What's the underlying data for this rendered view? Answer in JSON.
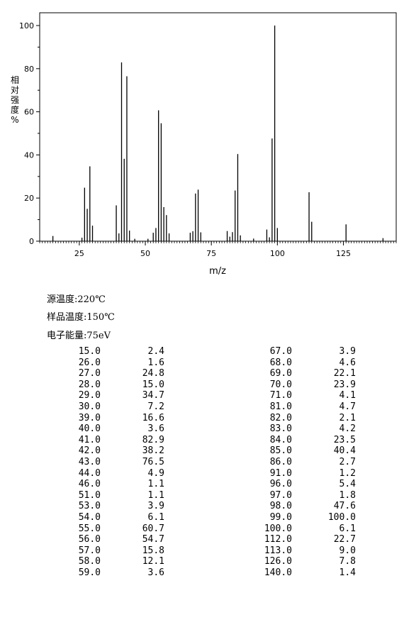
{
  "chart_data": {
    "type": "bar",
    "xlabel": "m/z",
    "ylabel": "相对强度%",
    "xlim": [
      10,
      145
    ],
    "ylim": [
      0,
      105
    ],
    "xticks": [
      25,
      50,
      75,
      100,
      125
    ],
    "yticks": [
      0,
      20,
      40,
      60,
      80,
      100
    ],
    "peaks": [
      {
        "mz": 15.0,
        "intensity": 2.4
      },
      {
        "mz": 26.0,
        "intensity": 1.6
      },
      {
        "mz": 27.0,
        "intensity": 24.8
      },
      {
        "mz": 28.0,
        "intensity": 15.0
      },
      {
        "mz": 29.0,
        "intensity": 34.7
      },
      {
        "mz": 30.0,
        "intensity": 7.2
      },
      {
        "mz": 39.0,
        "intensity": 16.6
      },
      {
        "mz": 40.0,
        "intensity": 3.6
      },
      {
        "mz": 41.0,
        "intensity": 82.9
      },
      {
        "mz": 42.0,
        "intensity": 38.2
      },
      {
        "mz": 43.0,
        "intensity": 76.5
      },
      {
        "mz": 44.0,
        "intensity": 4.9
      },
      {
        "mz": 46.0,
        "intensity": 1.1
      },
      {
        "mz": 51.0,
        "intensity": 1.1
      },
      {
        "mz": 53.0,
        "intensity": 3.9
      },
      {
        "mz": 54.0,
        "intensity": 6.1
      },
      {
        "mz": 55.0,
        "intensity": 60.7
      },
      {
        "mz": 56.0,
        "intensity": 54.7
      },
      {
        "mz": 57.0,
        "intensity": 15.8
      },
      {
        "mz": 58.0,
        "intensity": 12.1
      },
      {
        "mz": 59.0,
        "intensity": 3.6
      },
      {
        "mz": 67.0,
        "intensity": 3.9
      },
      {
        "mz": 68.0,
        "intensity": 4.6
      },
      {
        "mz": 69.0,
        "intensity": 22.1
      },
      {
        "mz": 70.0,
        "intensity": 23.9
      },
      {
        "mz": 71.0,
        "intensity": 4.1
      },
      {
        "mz": 81.0,
        "intensity": 4.7
      },
      {
        "mz": 82.0,
        "intensity": 2.1
      },
      {
        "mz": 83.0,
        "intensity": 4.2
      },
      {
        "mz": 84.0,
        "intensity": 23.5
      },
      {
        "mz": 85.0,
        "intensity": 40.4
      },
      {
        "mz": 86.0,
        "intensity": 2.7
      },
      {
        "mz": 91.0,
        "intensity": 1.2
      },
      {
        "mz": 96.0,
        "intensity": 5.4
      },
      {
        "mz": 97.0,
        "intensity": 1.8
      },
      {
        "mz": 98.0,
        "intensity": 47.6
      },
      {
        "mz": 99.0,
        "intensity": 100.0
      },
      {
        "mz": 100.0,
        "intensity": 6.1
      },
      {
        "mz": 112.0,
        "intensity": 22.7
      },
      {
        "mz": 113.0,
        "intensity": 9.0
      },
      {
        "mz": 126.0,
        "intensity": 7.8
      },
      {
        "mz": 140.0,
        "intensity": 1.4
      }
    ]
  },
  "meta": {
    "source_temp": "源温度:220℃",
    "sample_temp": "样品温度:150℃",
    "electron_energy": "电子能量:75eV"
  },
  "table": {
    "left": [
      [
        "15.0",
        "2.4"
      ],
      [
        "26.0",
        "1.6"
      ],
      [
        "27.0",
        "24.8"
      ],
      [
        "28.0",
        "15.0"
      ],
      [
        "29.0",
        "34.7"
      ],
      [
        "30.0",
        "7.2"
      ],
      [
        "39.0",
        "16.6"
      ],
      [
        "40.0",
        "3.6"
      ],
      [
        "41.0",
        "82.9"
      ],
      [
        "42.0",
        "38.2"
      ],
      [
        "43.0",
        "76.5"
      ],
      [
        "44.0",
        "4.9"
      ],
      [
        "46.0",
        "1.1"
      ],
      [
        "51.0",
        "1.1"
      ],
      [
        "53.0",
        "3.9"
      ],
      [
        "54.0",
        "6.1"
      ],
      [
        "55.0",
        "60.7"
      ],
      [
        "56.0",
        "54.7"
      ],
      [
        "57.0",
        "15.8"
      ],
      [
        "58.0",
        "12.1"
      ],
      [
        "59.0",
        "3.6"
      ]
    ],
    "right": [
      [
        "67.0",
        "3.9"
      ],
      [
        "68.0",
        "4.6"
      ],
      [
        "69.0",
        "22.1"
      ],
      [
        "70.0",
        "23.9"
      ],
      [
        "71.0",
        "4.1"
      ],
      [
        "81.0",
        "4.7"
      ],
      [
        "82.0",
        "2.1"
      ],
      [
        "83.0",
        "4.2"
      ],
      [
        "84.0",
        "23.5"
      ],
      [
        "85.0",
        "40.4"
      ],
      [
        "86.0",
        "2.7"
      ],
      [
        "91.0",
        "1.2"
      ],
      [
        "96.0",
        "5.4"
      ],
      [
        "97.0",
        "1.8"
      ],
      [
        "98.0",
        "47.6"
      ],
      [
        "99.0",
        "100.0"
      ],
      [
        "100.0",
        "6.1"
      ],
      [
        "112.0",
        "22.7"
      ],
      [
        "113.0",
        "9.0"
      ],
      [
        "126.0",
        "7.8"
      ],
      [
        "140.0",
        "1.4"
      ]
    ]
  }
}
